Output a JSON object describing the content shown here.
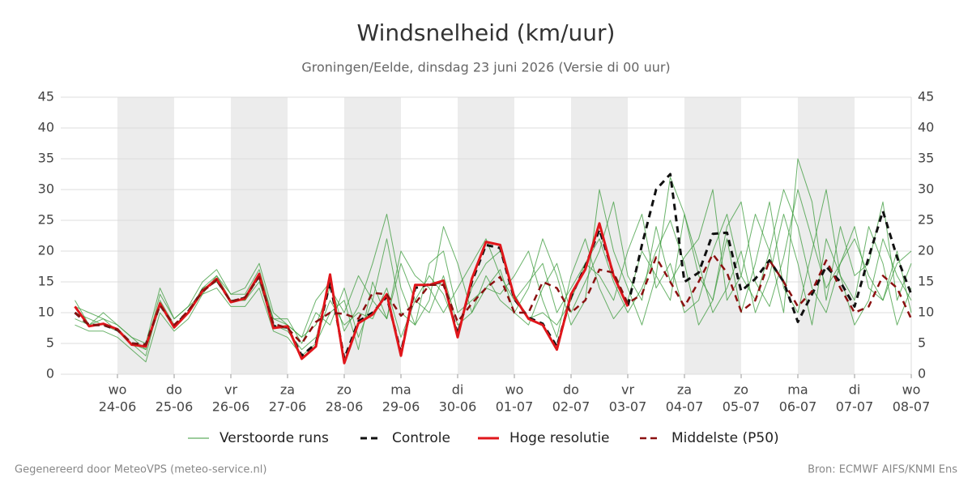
{
  "chart_data": {
    "type": "line",
    "title": "Windsnelheid (km/uur)",
    "subtitle": "Groningen/Eelde, dinsdag 23 juni 2026 (Versie di 00 uur)",
    "footer_left": "Gegenereerd door MeteoVPS (meteo-service.nl)",
    "footer_right": "Bron: ECMWF AIFS/KNMI Ens",
    "legend": "bottom",
    "grid": true,
    "xlim": [
      -1,
      59
    ],
    "xticks": [
      {
        "value": 3,
        "label": "wo",
        "date": "24-06"
      },
      {
        "value": 7,
        "label": "do",
        "date": "25-06"
      },
      {
        "value": 11,
        "label": "vr",
        "date": "26-06"
      },
      {
        "value": 15,
        "label": "za",
        "date": "27-06"
      },
      {
        "value": 19,
        "label": "zo",
        "date": "28-06"
      },
      {
        "value": 23,
        "label": "ma",
        "date": "29-06"
      },
      {
        "value": 27,
        "label": "di",
        "date": "30-06"
      },
      {
        "value": 31,
        "label": "wo",
        "date": "01-07"
      },
      {
        "value": 35,
        "label": "do",
        "date": "02-07"
      },
      {
        "value": 39,
        "label": "vr",
        "date": "03-07"
      },
      {
        "value": 43,
        "label": "za",
        "date": "04-07"
      },
      {
        "value": 47,
        "label": "zo",
        "date": "05-07"
      },
      {
        "value": 51,
        "label": "ma",
        "date": "06-07"
      },
      {
        "value": 55,
        "label": "di",
        "date": "07-07"
      },
      {
        "value": 59,
        "label": "wo",
        "date": "08-07"
      }
    ],
    "ylim": [
      0,
      45
    ],
    "yticks": [
      0,
      5,
      10,
      15,
      20,
      25,
      30,
      35,
      40,
      45
    ],
    "y2lim": [
      0,
      45
    ],
    "y2ticks": [
      0,
      5,
      10,
      15,
      20,
      25,
      30,
      35,
      40,
      45
    ],
    "ensemble": {
      "name": "Verstoorde runs",
      "color": "#3a9a3a",
      "members": [
        [
          9,
          8,
          9,
          7,
          5,
          3,
          12,
          8,
          10,
          14,
          16,
          12,
          12,
          15,
          8,
          7,
          4,
          6,
          12,
          8,
          10,
          9,
          14,
          6,
          12,
          16,
          13,
          7,
          14,
          18,
          20,
          13,
          9,
          10,
          8,
          12,
          18,
          22,
          15,
          10,
          14,
          20,
          25,
          18,
          8,
          12,
          24,
          28,
          15,
          11,
          19,
          30,
          22,
          14,
          18,
          24,
          14,
          12,
          20,
          10
        ],
        [
          12,
          8,
          10,
          8,
          6,
          4,
          13,
          9,
          11,
          15,
          17,
          13,
          13,
          17,
          9,
          9,
          5,
          10,
          8,
          14,
          6,
          12,
          22,
          10,
          8,
          18,
          20,
          10,
          12,
          14,
          17,
          10,
          8,
          14,
          18,
          10,
          15,
          20,
          28,
          16,
          12,
          24,
          15,
          19,
          22,
          30,
          12,
          16,
          26,
          20,
          10,
          35,
          28,
          12,
          24,
          16,
          18,
          28,
          12,
          18
        ],
        [
          8,
          7,
          7,
          6,
          4,
          2,
          10,
          7,
          9,
          13,
          14,
          11,
          11,
          14,
          7,
          6,
          3,
          5,
          10,
          12,
          4,
          15,
          9,
          18,
          12,
          10,
          16,
          8,
          10,
          14,
          13,
          16,
          20,
          12,
          6,
          16,
          22,
          14,
          9,
          12,
          20,
          16,
          12,
          26,
          18,
          10,
          14,
          20,
          10,
          16,
          26,
          18,
          8,
          22,
          16,
          12,
          24,
          18,
          8,
          14
        ],
        [
          10,
          9,
          8,
          7,
          5,
          4,
          11,
          8,
          10,
          14,
          15,
          12,
          12,
          16,
          9,
          8,
          6,
          12,
          15,
          7,
          11,
          18,
          26,
          14,
          8,
          12,
          24,
          18,
          10,
          16,
          12,
          10,
          14,
          22,
          16,
          8,
          12,
          30,
          20,
          14,
          8,
          16,
          32,
          26,
          16,
          12,
          22,
          10,
          18,
          28,
          14,
          10,
          20,
          30,
          16,
          8,
          12,
          22,
          16,
          12
        ],
        [
          11,
          10,
          9,
          8,
          6,
          5,
          14,
          9,
          11,
          13,
          16,
          13,
          14,
          18,
          10,
          8,
          6,
          8,
          14,
          10,
          16,
          12,
          9,
          20,
          16,
          14,
          10,
          14,
          18,
          22,
          16,
          12,
          15,
          18,
          10,
          14,
          18,
          16,
          12,
          20,
          26,
          14,
          18,
          10,
          12,
          20,
          26,
          16,
          12,
          20,
          30,
          24,
          14,
          10,
          18,
          22,
          16,
          12,
          18,
          20
        ]
      ]
    },
    "series": [
      {
        "name": "Controle",
        "color": "#111111",
        "dash": true,
        "width": 3,
        "values": [
          10,
          8,
          8,
          7.2,
          5,
          4.8,
          11.3,
          7.8,
          10.2,
          13.6,
          15.3,
          11.8,
          12.4,
          16,
          7.8,
          7.6,
          3,
          5,
          15,
          2.5,
          8.6,
          10,
          12.6,
          3.5,
          14,
          14.6,
          15,
          6.5,
          15,
          21,
          20.5,
          12.2,
          9.2,
          8.2,
          4.5,
          12.6,
          17.5,
          23.5,
          16.2,
          11,
          21,
          30,
          32.5,
          15,
          16.5,
          22.8,
          23,
          13.5,
          15.5,
          18.5,
          15,
          8.5,
          13,
          17.5,
          15,
          11,
          19,
          26.5,
          19,
          13
        ]
      },
      {
        "name": "Hoge resolutie",
        "color": "#e0161b",
        "dash": false,
        "width": 3,
        "values": [
          11,
          7.8,
          8.2,
          7.3,
          4.8,
          4.5,
          11.5,
          7.6,
          10,
          13.5,
          15.5,
          11.7,
          12.3,
          16.3,
          7.5,
          7.8,
          2.5,
          4.5,
          16.2,
          1.8,
          8.3,
          9.7,
          13,
          3,
          14.5,
          14.5,
          15.2,
          6,
          15.5,
          21.5,
          21,
          12.5,
          9,
          8,
          4,
          13,
          17,
          24.5,
          16,
          11,
          null,
          null,
          null,
          null,
          null,
          null,
          null,
          null,
          null,
          null,
          null,
          null,
          null,
          null,
          null,
          null,
          null,
          null,
          null,
          null
        ]
      },
      {
        "name": "Middelste (P50)",
        "color": "#8b1010",
        "dash": true,
        "width": 2.5,
        "values": [
          10,
          8,
          8,
          7.3,
          5,
          4.8,
          11.2,
          8,
          10.3,
          13.4,
          15.3,
          11.8,
          12.5,
          15.8,
          8.2,
          7.5,
          5,
          8.5,
          10,
          9.8,
          9,
          13.2,
          13,
          9.5,
          11.5,
          14.5,
          14.5,
          8.5,
          11.5,
          14,
          15.8,
          10,
          10,
          15,
          14,
          10,
          12,
          17,
          16.5,
          11.5,
          13,
          19,
          15,
          11,
          15,
          19.5,
          16.5,
          10.2,
          12,
          18.5,
          15,
          11,
          13.5,
          18.5,
          14,
          10,
          11,
          16,
          14,
          9
        ]
      }
    ]
  }
}
